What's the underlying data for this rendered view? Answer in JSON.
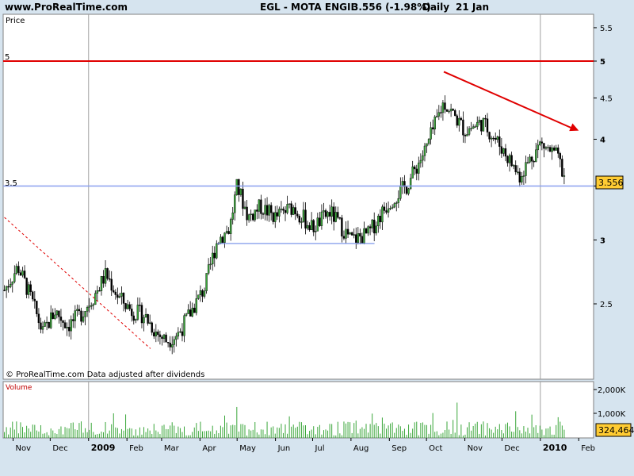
{
  "header": {
    "site": "www.ProRealTime.com",
    "instrument": "EGL - MOTA ENGIL",
    "quote": "3.556 (-1.98%)",
    "period": "Daily",
    "date": "21 Jan"
  },
  "colors": {
    "background": "#d6e4ef",
    "panel": "#ffffff",
    "resistance_line": "#e00000",
    "support_line": "#8aa0f0",
    "trend_arrow": "#e00000",
    "dotted_trend": "#e00000",
    "candles": "#000000",
    "volume_bars": "#3aa63a",
    "price_badge": "#ffcc33"
  },
  "price_panel": {
    "label": "Price",
    "watermark": "© ProRealTime.com  Data adjusted after dividends",
    "last_price": "3.556",
    "level_5_label": "5",
    "level_35_label": "3.5"
  },
  "volume_panel": {
    "label": "Volume",
    "last_volume": "324,464"
  },
  "chart_data": {
    "type": "candlestick",
    "title": "EGL - MOTA ENGIL",
    "ylabel": "Price",
    "y_scale": "log",
    "ylim": [
      2.2,
      5.7
    ],
    "y_ticks": [
      "2.5",
      "3",
      "3.5",
      "4",
      "4.5",
      "5",
      "5.5"
    ],
    "x_ticks": [
      "Nov",
      "Dec",
      "2009",
      "Feb",
      "Mar",
      "Apr",
      "May",
      "Jun",
      "Jul",
      "Aug",
      "Sep",
      "Oct",
      "Nov",
      "Dec",
      "2010",
      "Feb"
    ],
    "x_tick_months": [
      "2008-11",
      "2008-12",
      "2009-01",
      "2009-02",
      "2009-03",
      "2009-04",
      "2009-05",
      "2009-06",
      "2009-07",
      "2009-08",
      "2009-09",
      "2009-10",
      "2009-11",
      "2009-12",
      "2010-01",
      "2010-02"
    ],
    "horizontal_levels": [
      {
        "value": 5.0,
        "color": "#e00000"
      },
      {
        "value": 3.5,
        "color": "#8aa0f0"
      }
    ],
    "support_segment": {
      "from": "2009-04-15",
      "to": "2009-08-20",
      "value": 2.97
    },
    "trend_arrow": {
      "from_date": "2009-10-15",
      "from_value": 4.85,
      "to_date": "2010-02-01",
      "to_value": 4.1
    },
    "dotted_line": {
      "from_date": "2008-10-25",
      "from_value": 3.2,
      "to_date": "2009-02-20",
      "to_value": 2.2
    },
    "series": [
      {
        "values_dates": [
          "2008-10-25",
          "2008-11-05",
          "2008-11-15",
          "2008-11-25",
          "2008-12-05",
          "2008-12-15",
          "2008-12-25",
          "2009-01-05",
          "2009-01-15",
          "2009-01-25",
          "2009-02-05",
          "2009-02-15",
          "2009-02-25",
          "2009-03-05",
          "2009-03-15",
          "2009-03-25",
          "2009-04-05",
          "2009-04-15",
          "2009-04-25",
          "2009-05-01",
          "2009-05-10",
          "2009-05-20",
          "2009-06-01",
          "2009-06-15",
          "2009-07-01",
          "2009-07-15",
          "2009-08-01",
          "2009-08-15",
          "2009-09-01",
          "2009-09-15",
          "2009-10-01",
          "2009-10-15",
          "2009-11-01",
          "2009-11-15",
          "2009-12-01",
          "2009-12-15",
          "2010-01-01",
          "2010-01-15",
          "2010-01-21"
        ],
        "values": [
          2.6,
          2.78,
          2.55,
          2.3,
          2.45,
          2.35,
          2.42,
          2.55,
          2.72,
          2.55,
          2.45,
          2.42,
          2.3,
          2.25,
          2.3,
          2.45,
          2.62,
          3.0,
          3.1,
          3.5,
          3.2,
          3.3,
          3.2,
          3.3,
          3.1,
          3.25,
          3.0,
          3.05,
          3.35,
          3.5,
          3.9,
          4.45,
          4.1,
          4.2,
          3.9,
          3.6,
          3.95,
          3.8,
          3.556
        ]
      }
    ],
    "volume": {
      "y_ticks": [
        "1,000K",
        "2,000K"
      ],
      "last": 324464
    }
  }
}
